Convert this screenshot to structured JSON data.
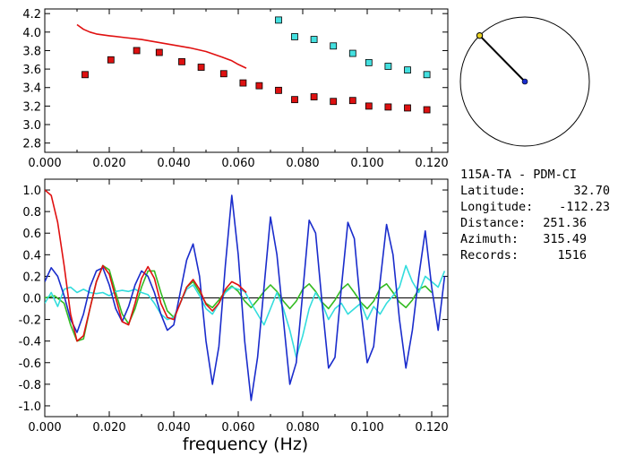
{
  "station": {
    "title": "115A-TA - PDM-CI",
    "rows": [
      {
        "label": "Latitude:",
        "value": "32.70"
      },
      {
        "label": "Longitude:",
        "value": "-112.23"
      },
      {
        "label": "Distance:",
        "value": "251.36"
      },
      {
        "label": "Azimuth:",
        "value": "315.49"
      },
      {
        "label": "Records:",
        "value": "1516"
      }
    ]
  },
  "colors": {
    "red": "#e01010",
    "blue": "#1a2ccc",
    "green": "#33bb22",
    "cyan": "#33dddd",
    "black": "#000000",
    "marker_red": "#dd1111",
    "marker_cyan": "#44e0e0",
    "pole": "#e8d020",
    "center": "#1a2ccc"
  },
  "chart_data": [
    {
      "type": "scatter",
      "name": "top-panel",
      "xlabel": "",
      "ylabel": "",
      "xlim": [
        0.0,
        0.125
      ],
      "ylim": [
        2.7,
        4.25
      ],
      "x_ticks": [
        "0.000",
        "0.020",
        "0.040",
        "0.060",
        "0.080",
        "0.100",
        "0.120"
      ],
      "x_tick_values": [
        0.0,
        0.02,
        0.04,
        0.06,
        0.08,
        0.1,
        0.12
      ],
      "y_ticks": [
        "2.8",
        "3.0",
        "3.2",
        "3.4",
        "3.6",
        "3.8",
        "4.0",
        "4.2"
      ],
      "y_tick_values": [
        2.8,
        3.0,
        3.2,
        3.4,
        3.6,
        3.8,
        4.0,
        4.2
      ],
      "series": [
        {
          "kind": "markers",
          "color": "#dd1111",
          "x": [
            0.0125,
            0.0205,
            0.0285,
            0.0355,
            0.0425,
            0.0485,
            0.0555,
            0.0615,
            0.0665,
            0.0725,
            0.0775,
            0.0835,
            0.0895,
            0.0955,
            0.1005,
            0.1065,
            0.1125,
            0.1185
          ],
          "y": [
            3.54,
            3.7,
            3.8,
            3.78,
            3.68,
            3.62,
            3.55,
            3.45,
            3.42,
            3.37,
            3.27,
            3.3,
            3.25,
            3.26,
            3.2,
            3.19,
            3.18,
            3.16
          ]
        },
        {
          "kind": "markers",
          "color": "#44e0e0",
          "x": [
            0.0725,
            0.0775,
            0.0835,
            0.0895,
            0.0955,
            0.1005,
            0.1065,
            0.1125,
            0.1185
          ],
          "y": [
            4.13,
            3.95,
            3.92,
            3.85,
            3.77,
            3.67,
            3.63,
            3.59,
            3.54
          ]
        },
        {
          "kind": "line",
          "color": "#e01010",
          "x": [
            0.01,
            0.012,
            0.014,
            0.016,
            0.02,
            0.025,
            0.03,
            0.035,
            0.04,
            0.045,
            0.05,
            0.055,
            0.058,
            0.06,
            0.0625
          ],
          "y": [
            4.08,
            4.03,
            4.0,
            3.98,
            3.96,
            3.94,
            3.92,
            3.89,
            3.86,
            3.83,
            3.79,
            3.73,
            3.69,
            3.65,
            3.61
          ]
        }
      ]
    },
    {
      "type": "line",
      "name": "bottom-panel",
      "xlabel": "frequency (Hz)",
      "ylabel": "",
      "xlim": [
        0.0,
        0.125
      ],
      "ylim": [
        -1.1,
        1.1
      ],
      "x_ticks": [
        "0.000",
        "0.020",
        "0.040",
        "0.060",
        "0.080",
        "0.100",
        "0.120"
      ],
      "x_tick_values": [
        0.0,
        0.02,
        0.04,
        0.06,
        0.08,
        0.1,
        0.12
      ],
      "y_ticks": [
        "1.0",
        "0.8",
        "0.6",
        "0.4",
        "0.2",
        "0.0",
        "-0.2",
        "-0.4",
        "-0.6",
        "-0.8",
        "-1.0"
      ],
      "y_tick_values": [
        1.0,
        0.8,
        0.6,
        0.4,
        0.2,
        0.0,
        -0.2,
        -0.4,
        -0.6,
        -0.8,
        -1.0
      ],
      "zero_line": true,
      "series": [
        {
          "color": "#33bb22",
          "x": [
            0.0,
            0.003,
            0.006,
            0.008,
            0.01,
            0.012,
            0.014,
            0.016,
            0.018,
            0.02,
            0.022,
            0.024,
            0.026,
            0.028,
            0.03,
            0.032,
            0.034,
            0.036,
            0.038,
            0.04,
            0.042,
            0.044,
            0.046,
            0.048,
            0.05,
            0.052,
            0.054,
            0.056,
            0.058,
            0.06,
            0.062,
            0.064,
            0.066,
            0.068,
            0.07,
            0.072,
            0.074,
            0.076,
            0.078,
            0.08,
            0.082,
            0.084,
            0.086,
            0.088,
            0.09,
            0.092,
            0.094,
            0.096,
            0.098,
            0.1,
            0.102,
            0.104,
            0.106,
            0.108,
            0.11,
            0.112,
            0.114,
            0.116,
            0.118,
            0.12
          ],
          "y": [
            0.0,
            0.02,
            -0.05,
            -0.25,
            -0.4,
            -0.38,
            -0.1,
            0.15,
            0.3,
            0.26,
            0.05,
            -0.15,
            -0.24,
            -0.1,
            0.1,
            0.25,
            0.25,
            0.05,
            -0.12,
            -0.18,
            -0.05,
            0.1,
            0.15,
            0.05,
            -0.05,
            -0.09,
            -0.02,
            0.06,
            0.11,
            0.06,
            -0.03,
            -0.09,
            -0.02,
            0.06,
            0.12,
            0.06,
            -0.03,
            -0.1,
            -0.03,
            0.08,
            0.13,
            0.06,
            -0.04,
            -0.1,
            -0.02,
            0.08,
            0.13,
            0.05,
            -0.04,
            -0.1,
            -0.03,
            0.09,
            0.13,
            0.05,
            -0.04,
            -0.09,
            -0.02,
            0.08,
            0.11,
            0.05
          ]
        },
        {
          "color": "#33dddd",
          "x": [
            0.0,
            0.002,
            0.004,
            0.006,
            0.008,
            0.01,
            0.012,
            0.014,
            0.016,
            0.018,
            0.02,
            0.022,
            0.024,
            0.026,
            0.028,
            0.03,
            0.032,
            0.034,
            0.036,
            0.038,
            0.04,
            0.042,
            0.044,
            0.046,
            0.048,
            0.05,
            0.052,
            0.054,
            0.056,
            0.058,
            0.06,
            0.062,
            0.064,
            0.066,
            0.068,
            0.07,
            0.072,
            0.074,
            0.076,
            0.078,
            0.08,
            0.082,
            0.084,
            0.086,
            0.088,
            0.09,
            0.092,
            0.094,
            0.096,
            0.098,
            0.1,
            0.102,
            0.104,
            0.106,
            0.108,
            0.11,
            0.112,
            0.114,
            0.116,
            0.118,
            0.12,
            0.122,
            0.124
          ],
          "y": [
            -0.05,
            0.05,
            -0.08,
            0.08,
            0.1,
            0.05,
            0.08,
            0.05,
            0.04,
            0.05,
            0.02,
            0.06,
            0.07,
            0.06,
            0.08,
            0.05,
            0.03,
            -0.05,
            -0.15,
            -0.2,
            -0.18,
            -0.05,
            0.08,
            0.12,
            0.02,
            -0.1,
            -0.15,
            -0.05,
            0.05,
            0.1,
            0.08,
            0.06,
            -0.05,
            -0.15,
            -0.25,
            -0.1,
            0.05,
            -0.1,
            -0.3,
            -0.55,
            -0.35,
            -0.1,
            0.05,
            -0.05,
            -0.2,
            -0.1,
            -0.05,
            -0.15,
            -0.1,
            -0.05,
            -0.2,
            -0.08,
            -0.15,
            -0.05,
            0.02,
            0.1,
            0.3,
            0.15,
            0.05,
            0.2,
            0.15,
            0.1,
            0.25
          ]
        },
        {
          "color": "#1a2ccc",
          "x": [
            0.0,
            0.002,
            0.004,
            0.006,
            0.008,
            0.01,
            0.012,
            0.014,
            0.016,
            0.018,
            0.02,
            0.022,
            0.024,
            0.026,
            0.028,
            0.03,
            0.032,
            0.034,
            0.036,
            0.038,
            0.04,
            0.042,
            0.044,
            0.046,
            0.048,
            0.05,
            0.052,
            0.054,
            0.056,
            0.058,
            0.06,
            0.062,
            0.064,
            0.066,
            0.068,
            0.07,
            0.072,
            0.074,
            0.076,
            0.078,
            0.08,
            0.082,
            0.084,
            0.086,
            0.088,
            0.09,
            0.092,
            0.094,
            0.096,
            0.098,
            0.1,
            0.102,
            0.104,
            0.106,
            0.108,
            0.11,
            0.112,
            0.114,
            0.116,
            0.118,
            0.12,
            0.122,
            0.124
          ],
          "y": [
            0.15,
            0.28,
            0.2,
            0.02,
            -0.2,
            -0.32,
            -0.15,
            0.1,
            0.25,
            0.28,
            0.12,
            -0.1,
            -0.22,
            -0.08,
            0.12,
            0.25,
            0.2,
            0.05,
            -0.15,
            -0.3,
            -0.25,
            0.05,
            0.35,
            0.5,
            0.2,
            -0.4,
            -0.8,
            -0.45,
            0.3,
            0.95,
            0.4,
            -0.4,
            -0.95,
            -0.55,
            0.1,
            0.75,
            0.4,
            -0.2,
            -0.8,
            -0.6,
            0.05,
            0.72,
            0.6,
            -0.05,
            -0.65,
            -0.55,
            0.1,
            0.7,
            0.55,
            -0.1,
            -0.6,
            -0.45,
            0.15,
            0.68,
            0.4,
            -0.2,
            -0.65,
            -0.3,
            0.2,
            0.62,
            0.1,
            -0.3,
            0.2
          ]
        },
        {
          "color": "#e01010",
          "x": [
            0.0,
            0.002,
            0.004,
            0.006,
            0.008,
            0.01,
            0.012,
            0.014,
            0.016,
            0.018,
            0.02,
            0.022,
            0.024,
            0.026,
            0.028,
            0.03,
            0.032,
            0.034,
            0.036,
            0.038,
            0.04,
            0.042,
            0.044,
            0.046,
            0.048,
            0.05,
            0.052,
            0.054,
            0.056,
            0.058,
            0.06,
            0.0625
          ],
          "y": [
            1.0,
            0.95,
            0.7,
            0.3,
            -0.15,
            -0.4,
            -0.35,
            -0.1,
            0.15,
            0.3,
            0.22,
            0.0,
            -0.22,
            -0.25,
            -0.05,
            0.18,
            0.29,
            0.18,
            -0.05,
            -0.18,
            -0.2,
            -0.05,
            0.1,
            0.17,
            0.08,
            -0.06,
            -0.12,
            -0.05,
            0.08,
            0.15,
            0.12,
            0.05
          ]
        }
      ]
    }
  ],
  "compass": {
    "azimuth_deg": 315.49
  }
}
